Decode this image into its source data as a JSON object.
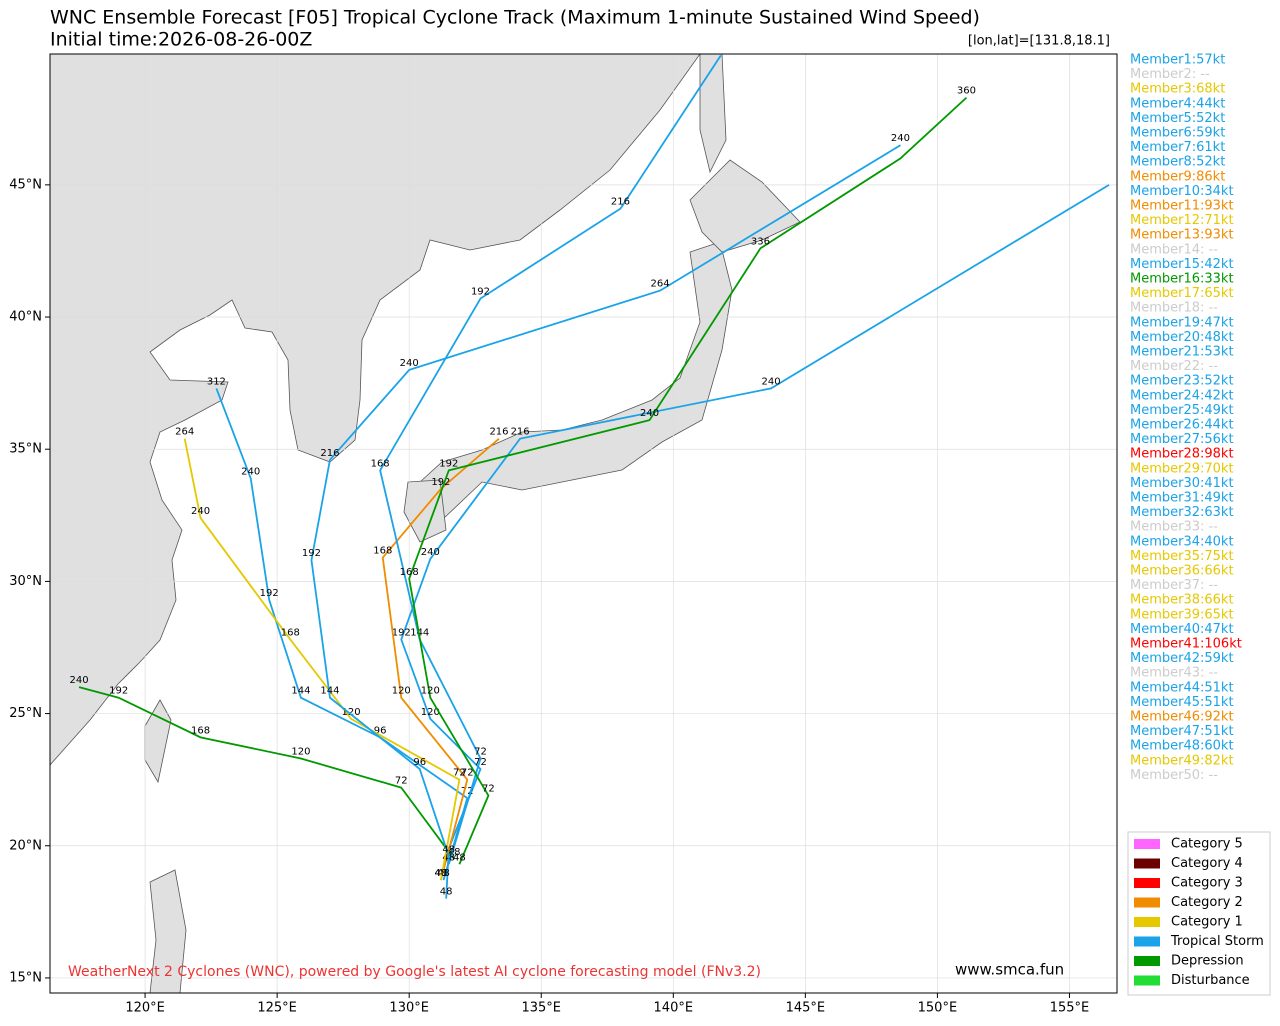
{
  "chart_data": {
    "type": "track-map",
    "title": "WNC Ensemble Forecast [F05] Tropical Cyclone Track (Maximum 1-minute Sustained Wind Speed)",
    "subtitle": "Initial time:2026-08-26-00Z",
    "position_label": "[lon,lat]=[131.8,18.1]",
    "credit": "WeatherNext 2 Cyclones (WNC), powered by Google's latest AI cyclone forecasting model (FNv3.2)",
    "website": "www.smca.fun",
    "xlim": [
      116.4,
      156.8
    ],
    "ylim": [
      14.43,
      49.95
    ],
    "grid": true,
    "xticks": [
      {
        "value": 120,
        "label": "120°E"
      },
      {
        "value": 125,
        "label": "125°E"
      },
      {
        "value": 130,
        "label": "130°E"
      },
      {
        "value": 135,
        "label": "135°E"
      },
      {
        "value": 140,
        "label": "140°E"
      },
      {
        "value": 145,
        "label": "145°E"
      },
      {
        "value": 150,
        "label": "150°E"
      },
      {
        "value": 155,
        "label": "155°E"
      }
    ],
    "yticks": [
      {
        "value": 15,
        "label": "15°N"
      },
      {
        "value": 20,
        "label": "20°N"
      },
      {
        "value": 25,
        "label": "25°N"
      },
      {
        "value": 30,
        "label": "30°N"
      },
      {
        "value": 35,
        "label": "35°N"
      },
      {
        "value": 40,
        "label": "40°N"
      },
      {
        "value": 45,
        "label": "45°N"
      }
    ],
    "tracks": [
      {
        "color": "#1aa3e8",
        "lon": [
          131.4,
          131.5,
          132.7,
          130.8,
          129.7,
          130.8,
          134.2,
          143.7,
          156.5
        ],
        "lat": [
          18.0,
          19.9,
          22.9,
          24.8,
          27.8,
          30.85,
          35.4,
          37.3,
          45.0
        ],
        "hours": [
          48,
          null,
          72,
          120,
          192,
          240,
          216,
          240,
          null
        ]
      },
      {
        "color": "#1aa3e8",
        "lon": [
          131.3,
          132.2,
          128.9,
          125.9,
          124.7,
          124.0,
          122.7
        ],
        "lat": [
          18.7,
          21.8,
          24.1,
          25.6,
          29.3,
          33.9,
          37.3
        ],
        "hours": [
          48,
          72,
          96,
          144,
          192,
          240,
          312
        ]
      },
      {
        "color": "#009900",
        "lon": [
          131.7,
          129.7,
          125.9,
          122.1,
          119.0,
          117.5
        ],
        "lat": [
          19.5,
          22.2,
          23.3,
          24.1,
          25.6,
          26.0
        ],
        "hours": [
          48,
          72,
          120,
          168,
          192,
          240
        ]
      },
      {
        "color": "#f08c00",
        "lon": [
          131.2,
          132.2,
          129.7,
          129.0,
          131.2,
          133.4
        ],
        "lat": [
          18.7,
          22.5,
          25.6,
          30.9,
          33.5,
          35.4
        ],
        "hours": [
          48,
          72,
          120,
          168,
          192,
          216
        ]
      },
      {
        "color": "#1aa3e8",
        "lon": [
          131.5,
          132.7,
          130.4,
          128.9,
          132.7,
          138.0,
          141.8
        ],
        "lat": [
          19.3,
          23.3,
          27.8,
          34.2,
          40.7,
          44.1,
          49.9
        ],
        "hours": [
          48,
          72,
          144,
          168,
          192,
          216,
          null
        ]
      },
      {
        "color": "#009900",
        "lon": [
          131.9,
          133.0,
          130.8,
          130.0,
          131.5,
          139.1,
          143.3,
          148.6,
          151.1
        ],
        "lat": [
          19.3,
          21.9,
          25.6,
          30.1,
          34.2,
          36.1,
          42.6,
          46.0,
          48.3
        ],
        "hours": [
          48,
          72,
          120,
          168,
          192,
          240,
          336,
          null,
          360
        ]
      },
      {
        "color": "#e6c800",
        "lon": [
          131.2,
          131.9,
          127.8,
          125.5,
          122.1,
          121.5
        ],
        "lat": [
          18.7,
          22.5,
          24.8,
          27.8,
          32.4,
          35.4
        ],
        "hours": [
          48,
          72,
          120,
          168,
          240,
          264
        ]
      },
      {
        "color": "#1aa3e8",
        "lon": [
          131.5,
          130.4,
          127.0,
          126.3,
          127.0,
          130.0,
          139.5,
          148.6
        ],
        "lat": [
          19.6,
          22.9,
          25.6,
          30.8,
          34.6,
          38.0,
          41.0,
          46.5
        ],
        "hours": [
          48,
          96,
          144,
          192,
          216,
          240,
          264,
          240
        ]
      }
    ],
    "members": [
      {
        "label": "Member1:57kt",
        "color": "#1aa3e8"
      },
      {
        "label": "Member2: --",
        "color": "#cccccc"
      },
      {
        "label": "Member3:68kt",
        "color": "#e6c800"
      },
      {
        "label": "Member4:44kt",
        "color": "#1aa3e8"
      },
      {
        "label": "Member5:52kt",
        "color": "#1aa3e8"
      },
      {
        "label": "Member6:59kt",
        "color": "#1aa3e8"
      },
      {
        "label": "Member7:61kt",
        "color": "#1aa3e8"
      },
      {
        "label": "Member8:52kt",
        "color": "#1aa3e8"
      },
      {
        "label": "Member9:86kt",
        "color": "#f08c00"
      },
      {
        "label": "Member10:34kt",
        "color": "#1aa3e8"
      },
      {
        "label": "Member11:93kt",
        "color": "#f08c00"
      },
      {
        "label": "Member12:71kt",
        "color": "#e6c800"
      },
      {
        "label": "Member13:93kt",
        "color": "#f08c00"
      },
      {
        "label": "Member14: --",
        "color": "#cccccc"
      },
      {
        "label": "Member15:42kt",
        "color": "#1aa3e8"
      },
      {
        "label": "Member16:33kt",
        "color": "#009900"
      },
      {
        "label": "Member17:65kt",
        "color": "#e6c800"
      },
      {
        "label": "Member18: --",
        "color": "#cccccc"
      },
      {
        "label": "Member19:47kt",
        "color": "#1aa3e8"
      },
      {
        "label": "Member20:48kt",
        "color": "#1aa3e8"
      },
      {
        "label": "Member21:53kt",
        "color": "#1aa3e8"
      },
      {
        "label": "Member22: --",
        "color": "#cccccc"
      },
      {
        "label": "Member23:52kt",
        "color": "#1aa3e8"
      },
      {
        "label": "Member24:42kt",
        "color": "#1aa3e8"
      },
      {
        "label": "Member25:49kt",
        "color": "#1aa3e8"
      },
      {
        "label": "Member26:44kt",
        "color": "#1aa3e8"
      },
      {
        "label": "Member27:56kt",
        "color": "#1aa3e8"
      },
      {
        "label": "Member28:98kt",
        "color": "#ff0000"
      },
      {
        "label": "Member29:70kt",
        "color": "#e6c800"
      },
      {
        "label": "Member30:41kt",
        "color": "#1aa3e8"
      },
      {
        "label": "Member31:49kt",
        "color": "#1aa3e8"
      },
      {
        "label": "Member32:63kt",
        "color": "#1aa3e8"
      },
      {
        "label": "Member33: --",
        "color": "#cccccc"
      },
      {
        "label": "Member34:40kt",
        "color": "#1aa3e8"
      },
      {
        "label": "Member35:75kt",
        "color": "#e6c800"
      },
      {
        "label": "Member36:66kt",
        "color": "#e6c800"
      },
      {
        "label": "Member37: --",
        "color": "#cccccc"
      },
      {
        "label": "Member38:66kt",
        "color": "#e6c800"
      },
      {
        "label": "Member39:65kt",
        "color": "#e6c800"
      },
      {
        "label": "Member40:47kt",
        "color": "#1aa3e8"
      },
      {
        "label": "Member41:106kt",
        "color": "#ff0000"
      },
      {
        "label": "Member42:59kt",
        "color": "#1aa3e8"
      },
      {
        "label": "Member43: --",
        "color": "#cccccc"
      },
      {
        "label": "Member44:51kt",
        "color": "#1aa3e8"
      },
      {
        "label": "Member45:51kt",
        "color": "#1aa3e8"
      },
      {
        "label": "Member46:92kt",
        "color": "#f08c00"
      },
      {
        "label": "Member47:51kt",
        "color": "#1aa3e8"
      },
      {
        "label": "Member48:60kt",
        "color": "#1aa3e8"
      },
      {
        "label": "Member49:82kt",
        "color": "#e6c800"
      },
      {
        "label": "Member50: --",
        "color": "#cccccc"
      }
    ],
    "legend": [
      {
        "name": "Category 5",
        "color": "#ff66ff"
      },
      {
        "name": "Category 4",
        "color": "#6b0000"
      },
      {
        "name": "Category 3",
        "color": "#ff0000"
      },
      {
        "name": "Category 2",
        "color": "#f08c00"
      },
      {
        "name": "Category 1",
        "color": "#e6c800"
      },
      {
        "name": "Tropical Storm",
        "color": "#1aa3e8"
      },
      {
        "name": "Depression",
        "color": "#009900"
      },
      {
        "name": "Disturbance",
        "color": "#22dd33"
      }
    ]
  }
}
